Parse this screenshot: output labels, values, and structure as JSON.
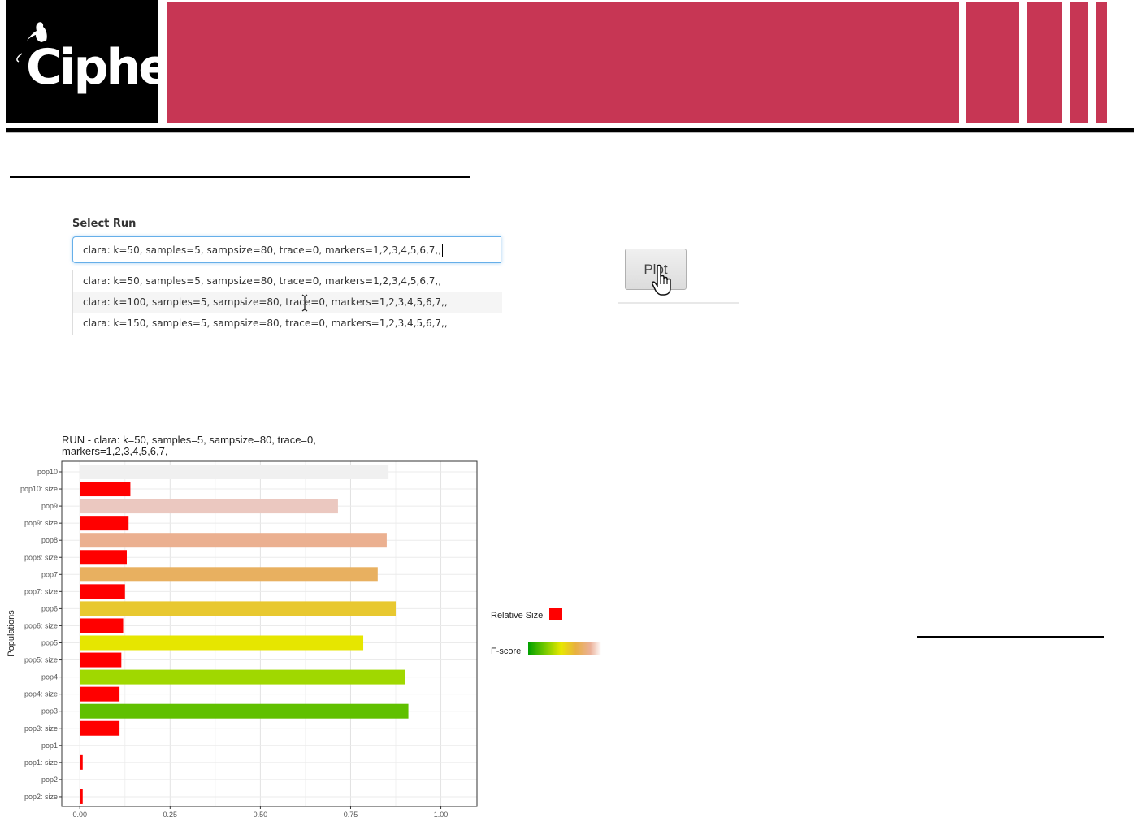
{
  "header": {
    "logo_text": "Ciphe",
    "accent_color": "#c73654"
  },
  "select_run": {
    "label": "Select Run",
    "value": "clara: k=50, samples=5, sampsize=80, trace=0, markers=1,2,3,4,5,6,7,,",
    "options": [
      "clara: k=50, samples=5, sampsize=80, trace=0, markers=1,2,3,4,5,6,7,,",
      "clara: k=100, samples=5, sampsize=80, trace=0, markers=1,2,3,4,5,6,7,,",
      "clara: k=150, samples=5, sampsize=80, trace=0, markers=1,2,3,4,5,6,7,,"
    ],
    "hovered_option_index": 1
  },
  "plot_button": {
    "label": "Plot"
  },
  "chart_data": {
    "type": "bar",
    "orientation": "horizontal",
    "title_line1": "RUN - clara: k=50, samples=5, sampsize=80, trace=0,",
    "title_line2": "markers=1,2,3,4,5,6,7,",
    "ylabel": "Populations",
    "xlim": [
      0,
      1.05
    ],
    "xticks": [
      "0.00",
      "0.25",
      "0.50",
      "0.75",
      "1.00"
    ],
    "xtick_values": [
      0,
      0.25,
      0.5,
      0.75,
      1.0
    ],
    "grid": true,
    "categories": [
      "pop10",
      "pop10: size",
      "pop9",
      "pop9: size",
      "pop8",
      "pop8: size",
      "pop7",
      "pop7: size",
      "pop6",
      "pop6: size",
      "pop5",
      "pop5: size",
      "pop4",
      "pop4: size",
      "pop3",
      "pop3: size",
      "pop1",
      "pop1: size",
      "pop2",
      "pop2: size"
    ],
    "values": [
      0.855,
      0.14,
      0.715,
      0.135,
      0.85,
      0.13,
      0.825,
      0.125,
      0.875,
      0.12,
      0.785,
      0.115,
      0.9,
      0.11,
      0.91,
      0.11,
      0,
      0.008,
      0,
      0.008
    ],
    "colors": [
      "#f0f0f0",
      "#ff0000",
      "#ebc8c0",
      "#ff0000",
      "#ebb090",
      "#ff0000",
      "#e8b060",
      "#ff0000",
      "#e8c830",
      "#ff0000",
      "#e6e600",
      "#ff0000",
      "#a0d800",
      "#ff0000",
      "#60c000",
      "#ff0000",
      "#ffffff",
      "#ff0000",
      "#ffffff",
      "#ff0000"
    ],
    "legend": {
      "relative_size_label": "Relative Size",
      "relative_size_color": "#ff0000",
      "fscore_label": "F-score"
    }
  }
}
